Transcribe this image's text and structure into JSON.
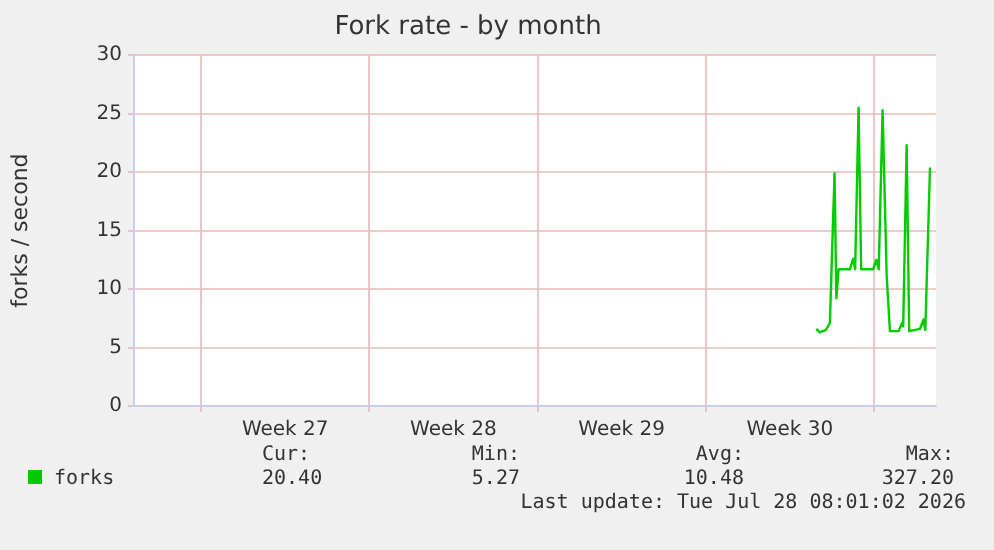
{
  "chart_data": {
    "type": "line",
    "title": "Fork rate - by month",
    "ylabel": "forks / second",
    "series": [
      {
        "name": "forks",
        "color": "#00cc00",
        "x": [
          "2026-07-23T14:24",
          "2026-07-23T18:00",
          "2026-07-24T00:00",
          "2026-07-24T04:00",
          "2026-07-24T08:40",
          "2026-07-24T10:30",
          "2026-07-24T12:45",
          "2026-07-25T00:00",
          "2026-07-25T03:20",
          "2026-07-25T05:15",
          "2026-07-25T08:40",
          "2026-07-25T11:15",
          "2026-07-25T23:15",
          "2026-07-26T02:24",
          "2026-07-26T04:48",
          "2026-07-26T08:40",
          "2026-07-26T12:45",
          "2026-07-26T16:00",
          "2026-07-27T00:45",
          "2026-07-27T04:00",
          "2026-07-27T05:15",
          "2026-07-27T08:40",
          "2026-07-27T11:15",
          "2026-07-27T22:00",
          "2026-07-28T01:30",
          "2026-07-28T03:20",
          "2026-07-28T08:00"
        ],
        "values": [
          6.6,
          6.3,
          6.5,
          7.1,
          19.9,
          9.2,
          11.7,
          11.7,
          12.6,
          11.7,
          25.5,
          11.7,
          11.7,
          12.5,
          11.7,
          25.3,
          11.1,
          6.4,
          6.4,
          7.1,
          6.8,
          22.3,
          6.4,
          6.6,
          7.4,
          6.5,
          20.4
        ]
      }
    ],
    "xlim": [
      "2026-06-25T05:00",
      "2026-07-28T14:00"
    ],
    "xticks": [
      {
        "value": "2026-06-28",
        "label": null
      },
      {
        "value": "2026-07-01T12:00",
        "label": "Week 27"
      },
      {
        "value": "2026-07-05",
        "label": null
      },
      {
        "value": "2026-07-08T12:00",
        "label": "Week 28"
      },
      {
        "value": "2026-07-12",
        "label": null
      },
      {
        "value": "2026-07-15T12:00",
        "label": "Week 29"
      },
      {
        "value": "2026-07-19",
        "label": null
      },
      {
        "value": "2026-07-22T12:00",
        "label": "Week 30"
      },
      {
        "value": "2026-07-26",
        "label": null
      }
    ],
    "ylim": [
      0,
      30
    ],
    "yticks": [
      0,
      5,
      10,
      15,
      20,
      25,
      30
    ],
    "grid": true,
    "legend": "bottom left",
    "marker": "none",
    "line_style": "solid",
    "annotations": [
      "Cur:",
      "Min:",
      "Avg:",
      "Max:",
      "20.40",
      "5.27",
      "10.48",
      "327.20",
      "Last update: Tue Jul 28 08:01:02 2026"
    ]
  }
}
